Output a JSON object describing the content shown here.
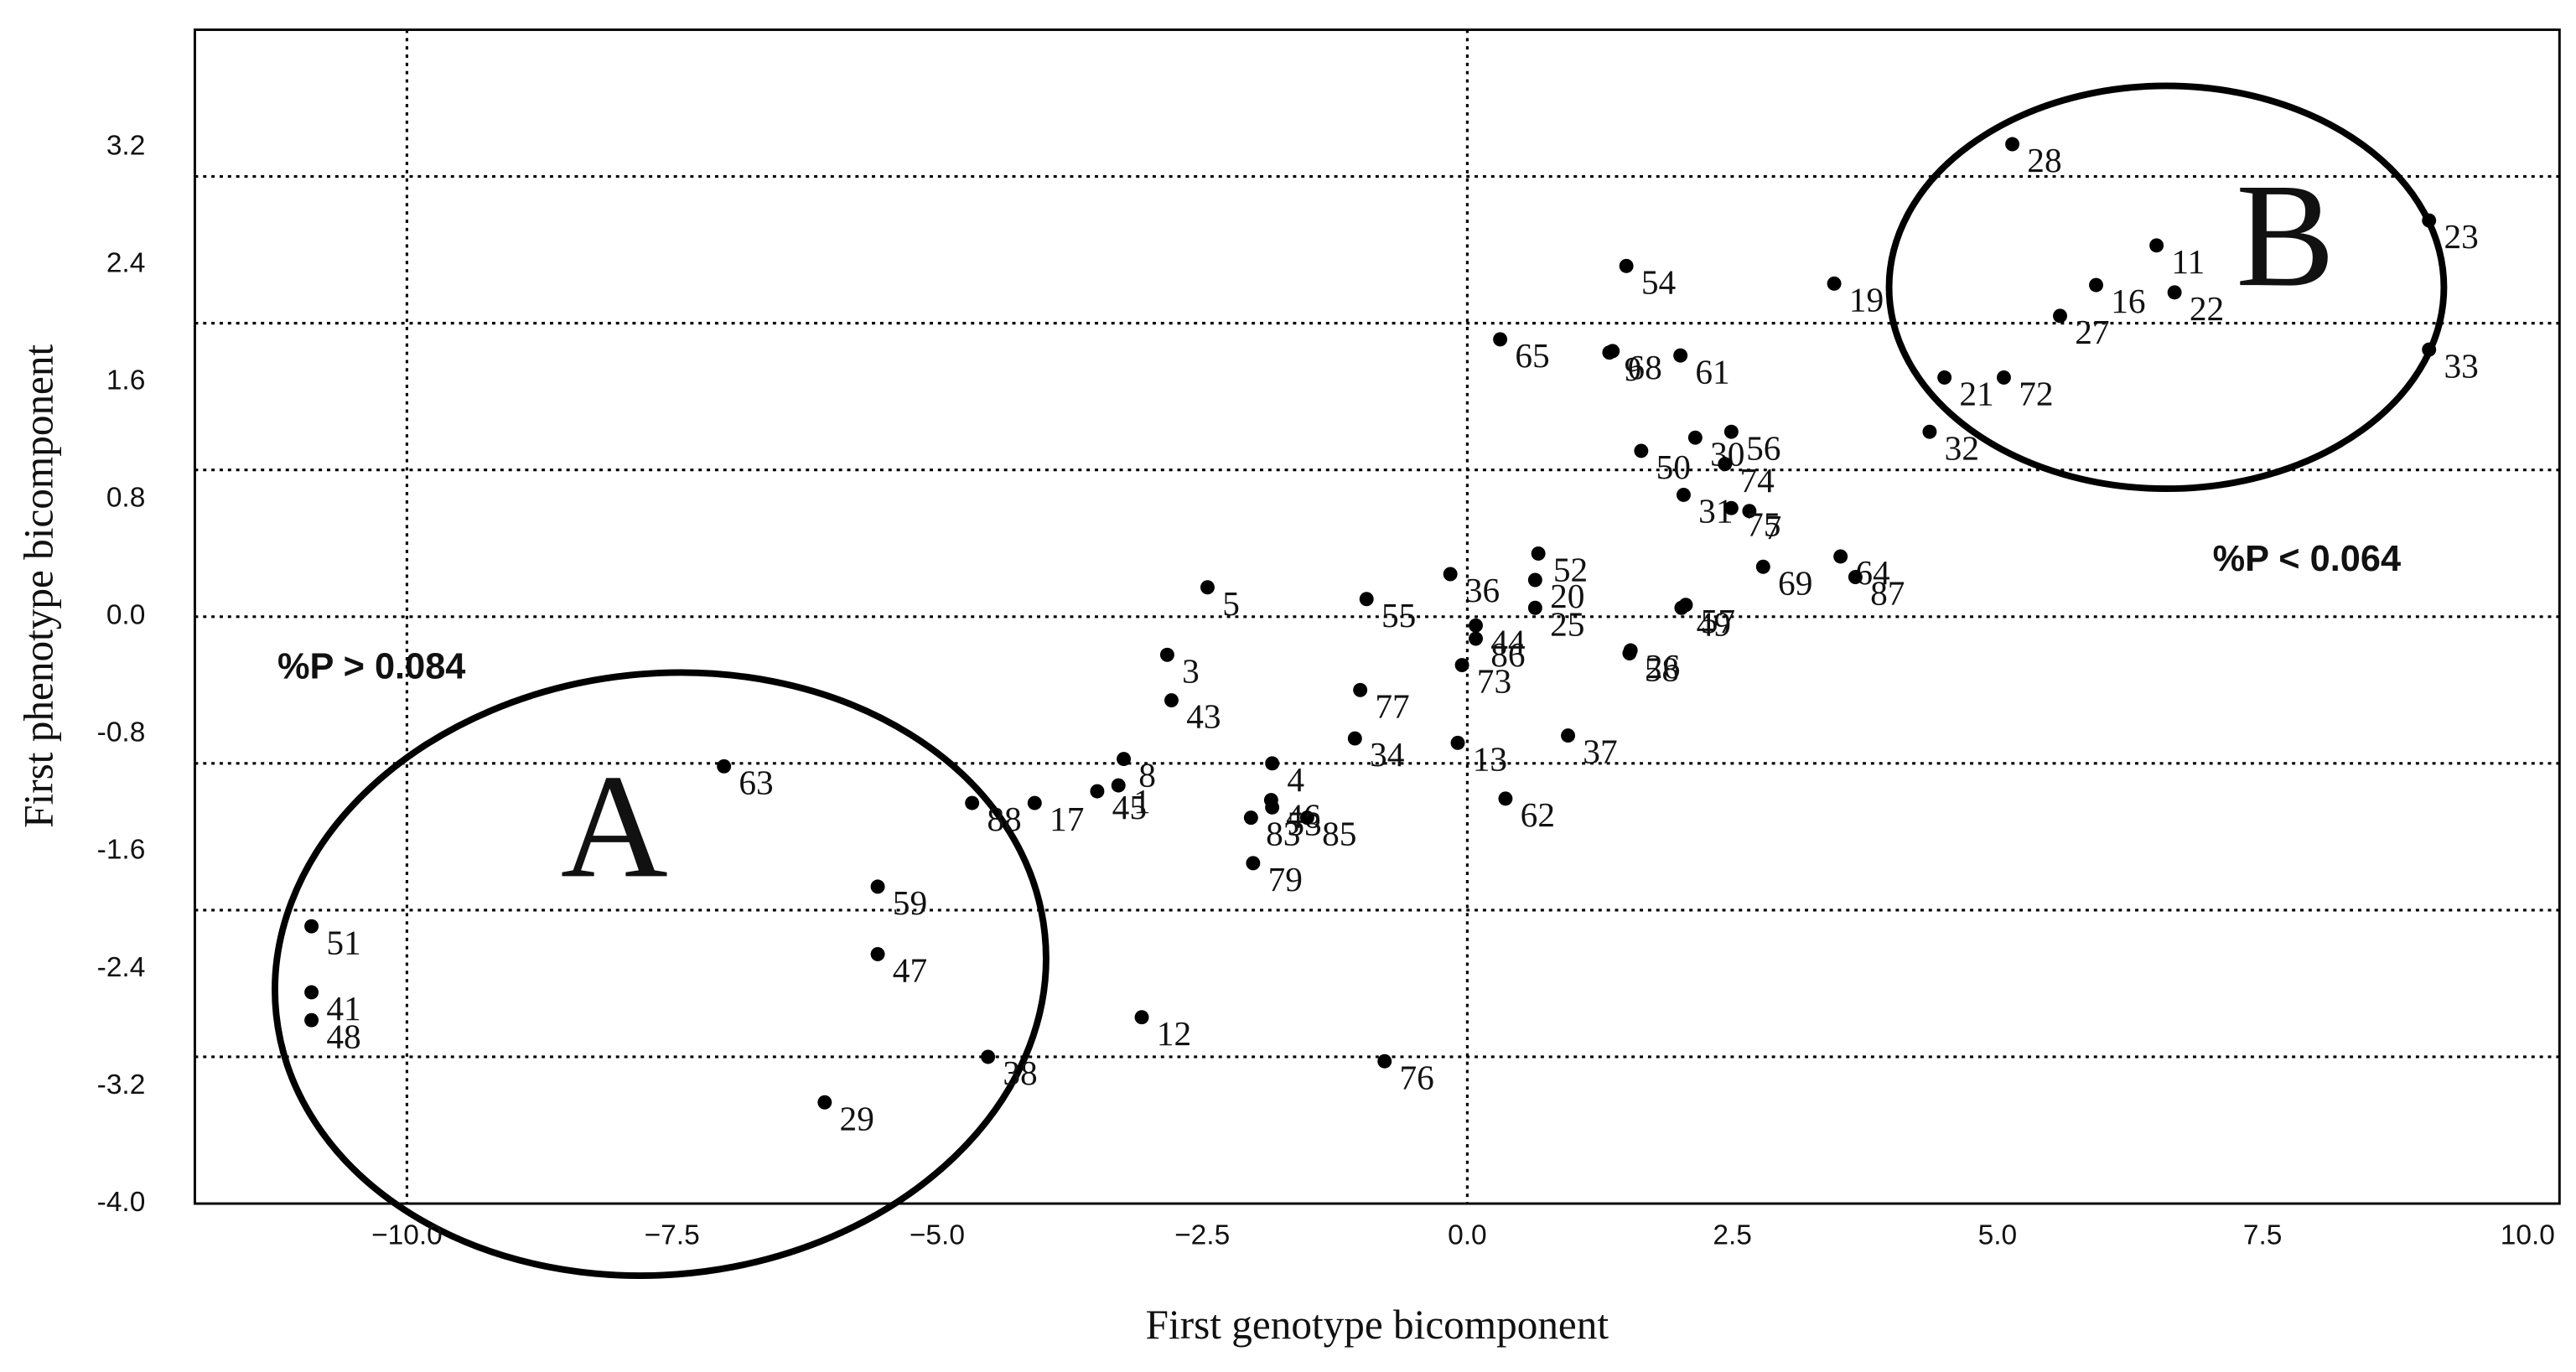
{
  "chart_data": {
    "type": "scatter",
    "x_label": "First genotype bicomponent",
    "y_label": "First phenotype bicomponent",
    "annotations": [
      "%P > 0.084",
      "%P < 0.064",
      "A",
      "B"
    ],
    "xlim": [
      -12,
      10.3
    ],
    "ylim": [
      -4,
      4
    ],
    "xticks": [
      {
        "value": -10,
        "label": "−10.0"
      },
      {
        "value": -7.5,
        "label": "−7.5"
      },
      {
        "value": -5,
        "label": "−5.0"
      },
      {
        "value": -2.5,
        "label": "−2.5"
      },
      {
        "value": 0,
        "label": "0.0"
      },
      {
        "value": 2.5,
        "label": "2.5"
      },
      {
        "value": 5,
        "label": "5.0"
      },
      {
        "value": 7.5,
        "label": "7.5"
      },
      {
        "value": 10,
        "label": "10.0"
      }
    ],
    "yticks": [
      {
        "value": -4,
        "label": "-4.0"
      },
      -3.2,
      -2.4,
      -1.6,
      -0.8,
      {
        "value": 0,
        "label": "0.0"
      },
      0.8,
      1.6,
      2.4,
      3.2
    ],
    "hgrid": [
      -3,
      -2,
      -1,
      0,
      1,
      2,
      3
    ],
    "vgrid": [
      -10,
      0
    ],
    "color": "#000000",
    "series": [
      {
        "labels": [
          "28",
          "23",
          "33",
          "11",
          "16",
          "22",
          "27",
          "21",
          "72",
          "32",
          "19",
          "54",
          "68",
          "61",
          "65",
          "9",
          "50",
          "30",
          "56",
          "74",
          "7",
          "31",
          "75",
          "69",
          "64",
          "87",
          "52",
          "20",
          "25",
          "57",
          "26",
          "49",
          "58",
          "36",
          "44",
          "86",
          "73",
          "55",
          "5",
          "3",
          "43",
          "77",
          "37",
          "13",
          "62",
          "34",
          "4",
          "46",
          "83",
          "85",
          "53",
          "79",
          "8",
          "1",
          "45",
          "17",
          "88",
          "63",
          "59",
          "47",
          "12",
          "38",
          "29",
          "76",
          "51",
          "41",
          "48"
        ],
        "x": [
          5.14,
          9.07,
          9.07,
          6.5,
          5.93,
          6.67,
          5.59,
          4.5,
          5.06,
          4.36,
          3.46,
          1.5,
          1.37,
          2.01,
          0.31,
          1.34,
          1.64,
          2.15,
          2.49,
          2.43,
          2.66,
          2.04,
          2.49,
          2.79,
          3.52,
          3.66,
          0.67,
          0.64,
          0.64,
          2.06,
          1.54,
          2.02,
          1.53,
          -0.16,
          0.08,
          0.08,
          -0.05,
          -0.95,
          -2.45,
          -2.83,
          -2.79,
          -1.01,
          0.95,
          -0.09,
          0.36,
          -1.06,
          -1.84,
          -1.85,
          -2.04,
          -1.51,
          -1.84,
          -2.02,
          -3.24,
          -3.29,
          -3.49,
          -4.08,
          -4.67,
          -7.01,
          -5.56,
          -5.56,
          -3.07,
          -4.52,
          -6.06,
          -0.78,
          -10.9,
          -10.9,
          -10.9
        ],
        "y": [
          3.22,
          2.7,
          1.82,
          2.53,
          2.26,
          2.21,
          2.05,
          1.63,
          1.63,
          1.26,
          2.27,
          2.39,
          1.81,
          1.78,
          1.89,
          1.8,
          1.13,
          1.22,
          1.26,
          1.04,
          0.72,
          0.83,
          0.74,
          0.34,
          0.41,
          0.27,
          0.43,
          0.25,
          0.06,
          0.08,
          -0.23,
          0.06,
          -0.25,
          0.29,
          -0.06,
          -0.15,
          -0.33,
          0.12,
          0.2,
          -0.26,
          -0.57,
          -0.5,
          -0.81,
          -0.86,
          -1.24,
          -0.83,
          -1.0,
          -1.25,
          -1.37,
          -1.37,
          -1.3,
          -1.68,
          -0.97,
          -1.15,
          -1.19,
          -1.27,
          -1.27,
          -1.02,
          -1.84,
          -2.3,
          -2.73,
          -3.0,
          -3.31,
          -3.03,
          -2.11,
          -2.56,
          -2.75
        ]
      }
    ]
  }
}
